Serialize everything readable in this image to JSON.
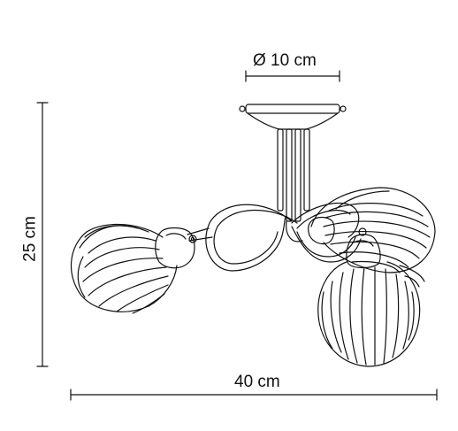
{
  "dimensions": {
    "diameter": "Ø 10 cm",
    "width": "40 cm",
    "height": "25 cm"
  },
  "colors": {
    "line": "#111111",
    "background": "#ffffff"
  }
}
